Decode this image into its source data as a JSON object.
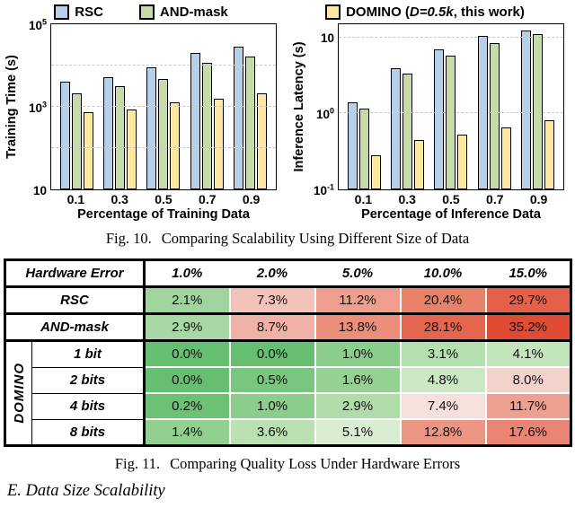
{
  "legend": {
    "items": [
      {
        "label": "RSC",
        "color": "#b7cfe9"
      },
      {
        "label": "AND-mask",
        "color": "#c6dba8"
      },
      {
        "prefix": "DOMINO (",
        "italic": "D=0.5k",
        "suffix": ", this work)",
        "color": "#ffe89f"
      }
    ]
  },
  "chart_data": [
    {
      "type": "bar",
      "title": "",
      "ylabel": "Training Time (s)",
      "xlabel": "Percentage of Training Data",
      "yscale": "log",
      "ylim": [
        10,
        100000
      ],
      "grid": true,
      "yticks": [
        {
          "v": 100000,
          "label": "10^5"
        },
        {
          "v": 1000,
          "label": "10^3"
        },
        {
          "v": 10,
          "label": "10"
        }
      ],
      "categories": [
        "0.1",
        "0.3",
        "0.5",
        "0.7",
        "0.9"
      ],
      "series": [
        {
          "name": "RSC",
          "color": "#b7cfe9",
          "values": [
            4000,
            5200,
            8900,
            20000,
            29000
          ]
        },
        {
          "name": "AND-mask",
          "color": "#c6dba8",
          "values": [
            2100,
            3200,
            4800,
            11500,
            16500
          ]
        },
        {
          "name": "DOMINO",
          "color": "#ffe89f",
          "values": [
            750,
            870,
            1300,
            1600,
            2100
          ]
        }
      ]
    },
    {
      "type": "bar",
      "title": "",
      "ylabel": "Inference Latency (s)",
      "xlabel": "Percentage of Inference Data",
      "yscale": "log",
      "ylim": [
        0.1,
        15
      ],
      "grid": true,
      "yticks": [
        {
          "v": 10,
          "label": "10"
        },
        {
          "v": 1,
          "label": "10^0"
        },
        {
          "v": 0.1,
          "label": "10^-1"
        }
      ],
      "categories": [
        "0.1",
        "0.3",
        "0.5",
        "0.7",
        "0.9"
      ],
      "series": [
        {
          "name": "RSC",
          "color": "#b7cfe9",
          "values": [
            1.4,
            4.0,
            7.0,
            10.5,
            12.5
          ]
        },
        {
          "name": "AND-mask",
          "color": "#c6dba8",
          "values": [
            1.15,
            3.4,
            5.8,
            8.5,
            11.0
          ]
        },
        {
          "name": "DOMINO",
          "color": "#ffe89f",
          "values": [
            0.28,
            0.45,
            0.53,
            0.65,
            0.82
          ]
        }
      ]
    }
  ],
  "captions": {
    "fig10_label": "Fig. 10.",
    "fig10_text": "Comparing Scalability Using Different Size of Data",
    "fig11_label": "Fig. 11.",
    "fig11_text": "Comparing Quality Loss Under Hardware Errors"
  },
  "section_heading": "E. Data Size Scalability",
  "table": {
    "header": {
      "label": "Hardware Error",
      "cols": [
        "1.0%",
        "2.0%",
        "5.0%",
        "10.0%",
        "15.0%"
      ]
    },
    "rows": [
      {
        "label": "RSC",
        "values": [
          "2.1%",
          "7.3%",
          "11.2%",
          "20.4%",
          "29.7%"
        ],
        "colors": [
          "#9fd49d",
          "#f3c3ba",
          "#ee9e8d",
          "#e98068",
          "#e4604a"
        ]
      },
      {
        "label": "AND-mask",
        "values": [
          "2.9%",
          "8.7%",
          "13.8%",
          "28.1%",
          "35.2%"
        ],
        "colors": [
          "#a8d8a3",
          "#f0b2a6",
          "#eb8f7b",
          "#e5664e",
          "#e04c33"
        ]
      }
    ],
    "domino_label": "DOMINO",
    "domino_rows": [
      {
        "label": "1 bit",
        "values": [
          "0.0%",
          "0.0%",
          "1.0%",
          "3.1%",
          "4.1%"
        ],
        "colors": [
          "#66bf70",
          "#66bf70",
          "#8bcd8a",
          "#b4dfae",
          "#c3e5bb"
        ]
      },
      {
        "label": "2 bits",
        "values": [
          "0.0%",
          "0.5%",
          "1.6%",
          "4.8%",
          "8.0%"
        ],
        "colors": [
          "#66bf70",
          "#79c67f",
          "#95d193",
          "#cbe7c3",
          "#f2d3cc"
        ]
      },
      {
        "label": "4 bits",
        "values": [
          "0.2%",
          "1.0%",
          "2.9%",
          "7.4%",
          "11.7%"
        ],
        "colors": [
          "#6cc175",
          "#8bcd8a",
          "#b0dcaa",
          "#f6e0db",
          "#eda08f"
        ]
      },
      {
        "label": "8 bits",
        "values": [
          "1.4%",
          "3.6%",
          "5.1%",
          "12.8%",
          "17.6%"
        ],
        "colors": [
          "#91d08f",
          "#b9e1b2",
          "#d8edd1",
          "#ec9583",
          "#e98472"
        ]
      }
    ]
  }
}
